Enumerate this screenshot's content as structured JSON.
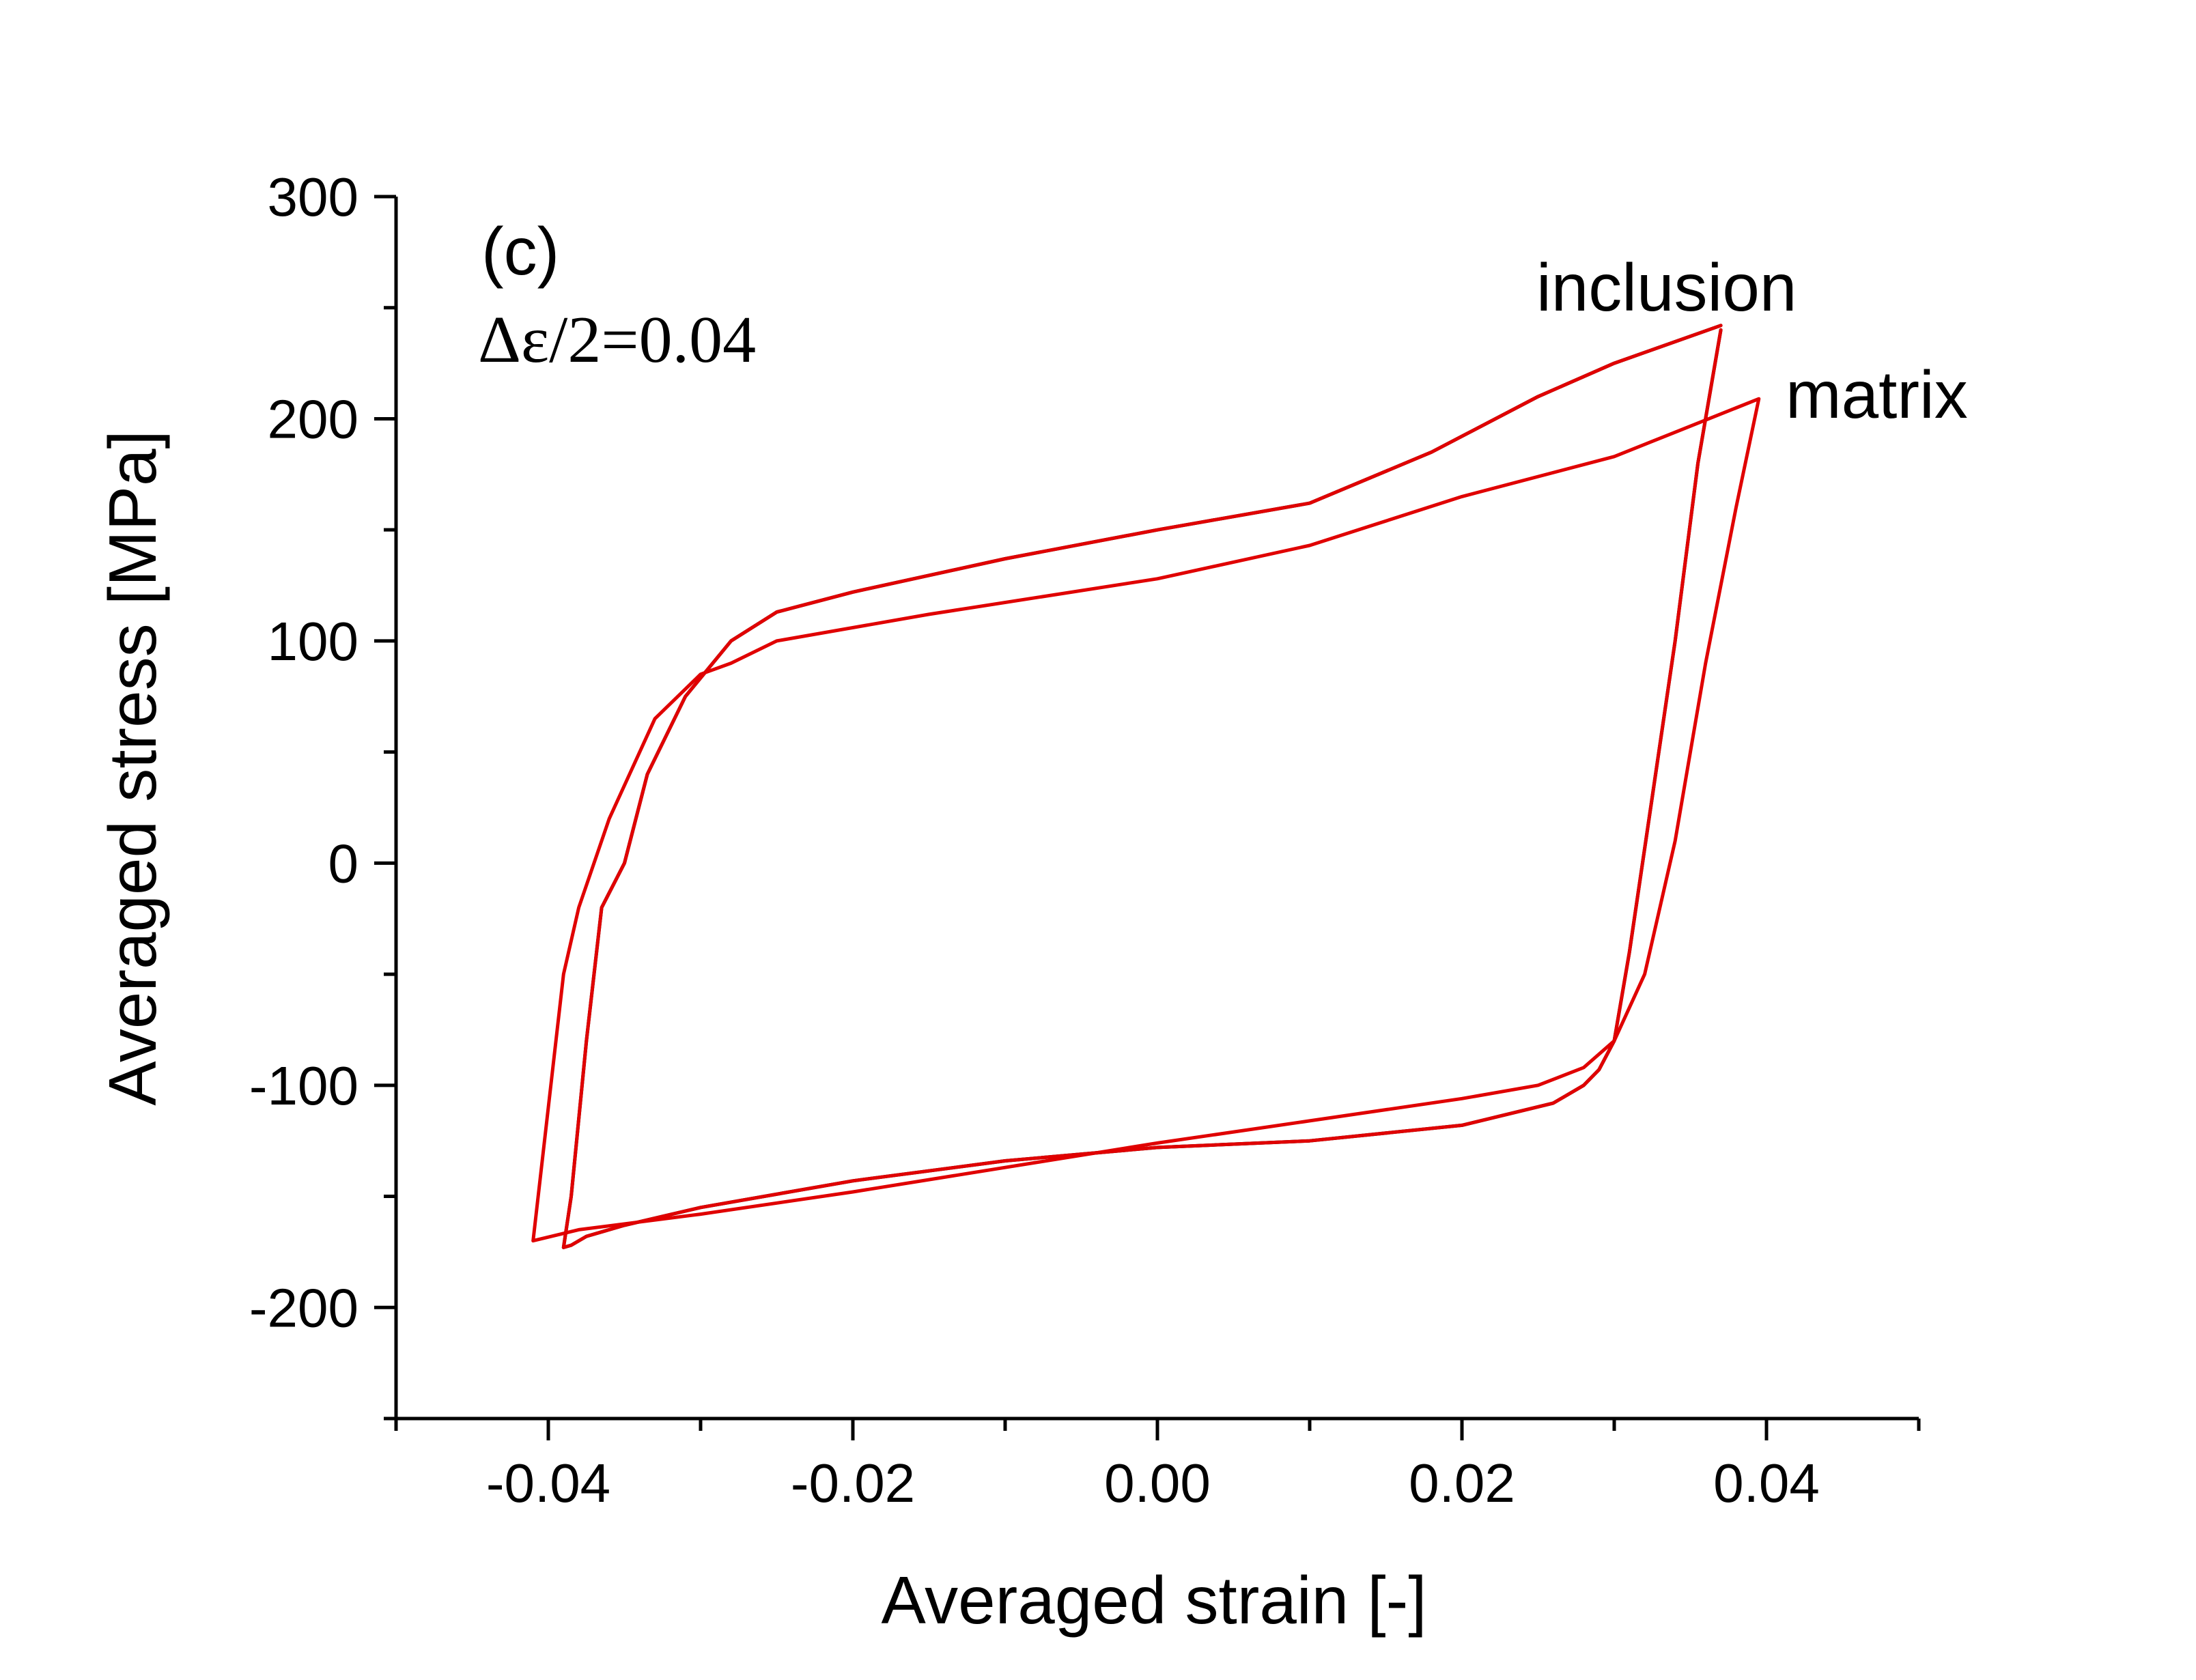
{
  "chart_data": {
    "type": "line",
    "title": "",
    "xlabel": "Averaged strain [-]",
    "ylabel": "Averaged stress [MPa]",
    "xlim": [
      -0.05,
      0.05
    ],
    "ylim": [
      -250,
      300
    ],
    "x_ticks": [
      -0.04,
      -0.02,
      0.0,
      0.02,
      0.04
    ],
    "x_tick_labels": [
      "-0.04",
      "-0.02",
      "0.00",
      "0.02",
      "0.04"
    ],
    "y_ticks": [
      -200,
      -100,
      0,
      100,
      200,
      300
    ],
    "y_tick_labels": [
      "-200",
      "-100",
      "0",
      "100",
      "200",
      "300"
    ],
    "grid": false,
    "annotations": {
      "panel_label": "(c)",
      "amplitude_label": "Δε/2=0.04",
      "inclusion_label": "inclusion",
      "matrix_label": "matrix"
    },
    "series": [
      {
        "name": "inclusion",
        "color": "#000000",
        "x": [
          0.037,
          0.0355,
          0.034,
          0.0325,
          0.031,
          0.03,
          0.029,
          0.028,
          0.026,
          0.02,
          0.01,
          0.0,
          -0.01,
          -0.02,
          -0.03,
          -0.035,
          -0.0375,
          -0.0385,
          -0.039,
          -0.0385,
          -0.0375,
          -0.0365,
          -0.035,
          -0.0335,
          -0.031,
          -0.028,
          -0.025,
          -0.02,
          -0.01,
          0.0,
          0.01,
          0.018,
          0.025,
          0.03,
          0.037
        ],
        "y": [
          240,
          180,
          100,
          30,
          -40,
          -80,
          -93,
          -100,
          -108,
          -118,
          -125,
          -128,
          -134,
          -143,
          -155,
          -163,
          -168,
          -172,
          -173,
          -150,
          -80,
          -20,
          0,
          40,
          75,
          100,
          113,
          122,
          137,
          150,
          162,
          185,
          210,
          225,
          242
        ]
      },
      {
        "name": "matrix",
        "color": "#e00000",
        "x": [
          0.0395,
          0.038,
          0.036,
          0.034,
          0.032,
          0.03,
          0.028,
          0.025,
          0.02,
          0.01,
          0.0,
          -0.01,
          -0.02,
          -0.03,
          -0.038,
          -0.041,
          -0.04,
          -0.039,
          -0.038,
          -0.036,
          -0.033,
          -0.03,
          -0.028,
          -0.025,
          -0.015,
          0.0,
          0.01,
          0.02,
          0.03,
          0.0395
        ],
        "y": [
          209,
          160,
          90,
          10,
          -50,
          -80,
          -92,
          -100,
          -106,
          -116,
          -126,
          -137,
          -148,
          -158,
          -165,
          -170,
          -110,
          -50,
          -20,
          20,
          65,
          85,
          90,
          100,
          112,
          128,
          143,
          165,
          183,
          209
        ]
      }
    ]
  }
}
